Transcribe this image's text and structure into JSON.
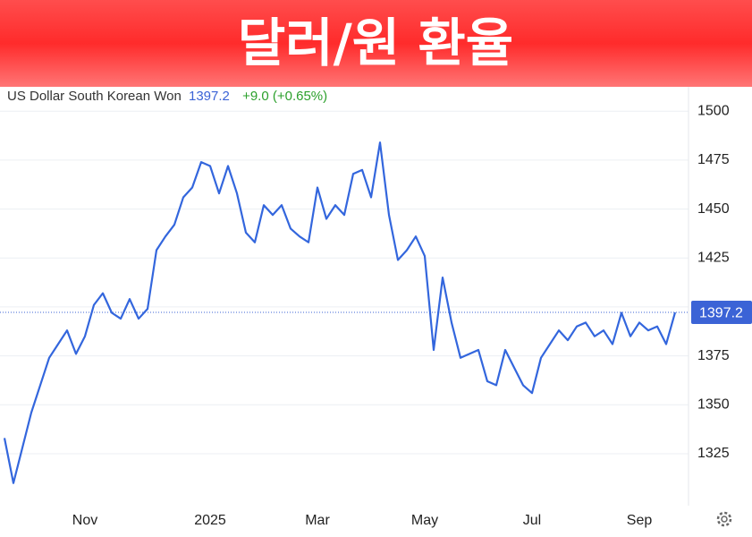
{
  "chart_data": {
    "type": "line",
    "title": "달러/원 환율",
    "name": "US Dollar South Korean Won",
    "price": 1397.2,
    "change": "+9.0 (+0.65%)",
    "color": "#3366dd",
    "categories": [
      null,
      null,
      null,
      null,
      null,
      null,
      null,
      null,
      null,
      "Nov",
      null,
      null,
      null,
      null,
      null,
      null,
      null,
      null,
      null,
      null,
      null,
      null,
      null,
      "2025",
      null,
      null,
      null,
      null,
      null,
      null,
      null,
      null,
      null,
      null,
      null,
      "Mar",
      null,
      null,
      null,
      null,
      null,
      null,
      null,
      null,
      null,
      null,
      null,
      "May",
      null,
      null,
      null,
      null,
      null,
      null,
      null,
      null,
      null,
      null,
      null,
      "Jul",
      null,
      null,
      null,
      null,
      null,
      null,
      null,
      null,
      null,
      null,
      null,
      "Sep",
      null,
      null,
      null,
      null
    ],
    "values": [
      1333,
      1310,
      1328,
      1346,
      1360,
      1374,
      1381,
      1388,
      1376,
      1385,
      1401,
      1407,
      1397,
      1394,
      1404,
      1394,
      1399,
      1429,
      1436,
      1442,
      1456,
      1461,
      1474,
      1472,
      1458,
      1472,
      1458,
      1438,
      1433,
      1452,
      1447,
      1452,
      1440,
      1436,
      1433,
      1461,
      1445,
      1452,
      1447,
      1468,
      1470,
      1456,
      1484,
      1447,
      1424,
      1429,
      1436,
      1426,
      1378,
      1415,
      1392,
      1374,
      1376,
      1378,
      1362,
      1360,
      1378,
      1369,
      1360,
      1356,
      1374,
      1381,
      1388,
      1383,
      1390,
      1392,
      1385,
      1388,
      1381,
      1397,
      1385,
      1392,
      1388,
      1390,
      1381,
      1397.2
    ],
    "ylim": [
      1298,
      1512
    ],
    "yticks": [
      1325,
      1350,
      1375,
      1400,
      1425,
      1450,
      1475,
      1500
    ],
    "grid": true
  }
}
